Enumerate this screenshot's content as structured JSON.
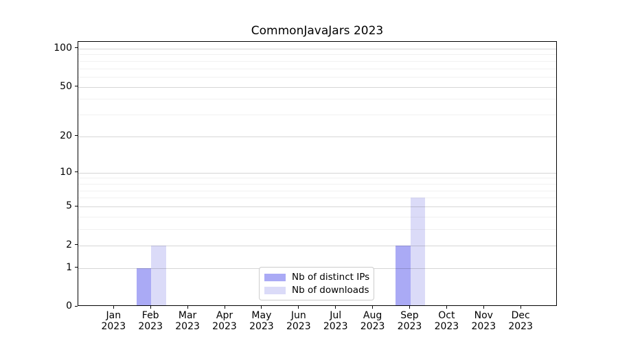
{
  "title": "CommonJavaJars 2023",
  "chart_data": {
    "type": "bar",
    "title": "CommonJavaJars 2023",
    "x": [
      "Jan 2023",
      "Feb 2023",
      "Mar 2023",
      "Apr 2023",
      "May 2023",
      "Jun 2023",
      "Jul 2023",
      "Aug 2023",
      "Sep 2023",
      "Oct 2023",
      "Nov 2023",
      "Dec 2023"
    ],
    "x_tick_month": [
      "Jan",
      "Feb",
      "Mar",
      "Apr",
      "May",
      "Jun",
      "Jul",
      "Aug",
      "Sep",
      "Oct",
      "Nov",
      "Dec"
    ],
    "x_tick_year": "2023",
    "series": [
      {
        "name": "Nb of distinct IPs",
        "color": "#aaaaf5",
        "values": [
          0,
          1,
          0,
          0,
          0,
          0,
          0,
          0,
          2,
          0,
          0,
          0
        ]
      },
      {
        "name": "Nb of downloads",
        "color": "#dbdbf8",
        "values": [
          0,
          2,
          0,
          0,
          0,
          0,
          0,
          0,
          6,
          0,
          0,
          0
        ]
      }
    ],
    "y_scale": "log1p",
    "ylim": [
      0,
      113
    ],
    "y_major_ticks": [
      0,
      1,
      2,
      5,
      10,
      20,
      50,
      100
    ],
    "y_minor_gridlines": [
      3,
      4,
      6,
      7,
      8,
      9,
      30,
      40,
      60,
      70,
      80,
      90
    ],
    "grid": "horizontal",
    "legend_position": "lower center"
  },
  "legend": {
    "items": [
      {
        "label": "Nb of distinct IPs",
        "color": "#aaaaf5"
      },
      {
        "label": "Nb of downloads",
        "color": "#dbdbf8"
      }
    ]
  },
  "colors": {
    "background": "#ffffff",
    "frame": "#000000",
    "text": "#000000",
    "grid_major": "rgba(0,0,0,0.16)",
    "grid_minor": "rgba(0,0,0,0.055)",
    "legend_border": "#cccccc"
  }
}
